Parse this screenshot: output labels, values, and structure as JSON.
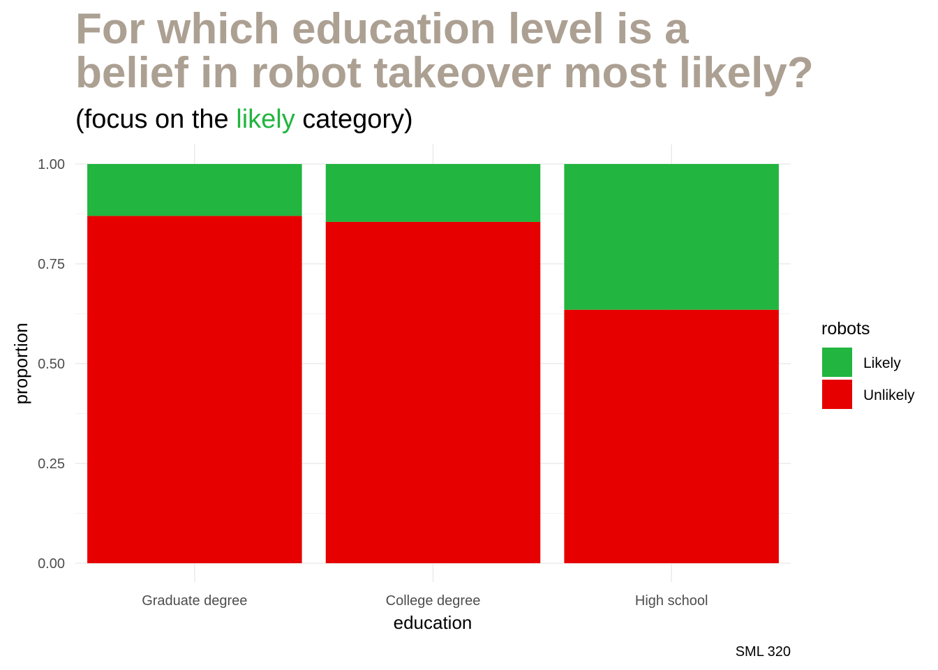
{
  "title_lines": [
    "For which education level is a",
    "belief in robot takeover most likely?"
  ],
  "subtitle": {
    "before": "(focus on the ",
    "highlight": "likely",
    "after": " category)"
  },
  "caption": "SML 320",
  "colors": {
    "title": "#aca093",
    "highlight": "#22b53f",
    "likely": "#22b53f",
    "unlikely": "#e60000"
  },
  "chart_data": {
    "type": "bar",
    "stacked": true,
    "categories": [
      "Graduate degree",
      "College degree",
      "High school"
    ],
    "series": [
      {
        "name": "Likely",
        "values": [
          0.13,
          0.145,
          0.365
        ],
        "color": "#22b53f"
      },
      {
        "name": "Unlikely",
        "values": [
          0.87,
          0.855,
          0.635
        ],
        "color": "#e60000"
      }
    ],
    "xlabel": "education",
    "ylabel": "proportion",
    "ylim": [
      0,
      1
    ],
    "yticks": [
      "0.00",
      "0.25",
      "0.50",
      "0.75",
      "1.00"
    ],
    "ytick_values": [
      0,
      0.25,
      0.5,
      0.75,
      1
    ],
    "legend": {
      "title": "robots",
      "entries": [
        "Likely",
        "Unlikely"
      ],
      "position": "right"
    },
    "grid": true
  }
}
